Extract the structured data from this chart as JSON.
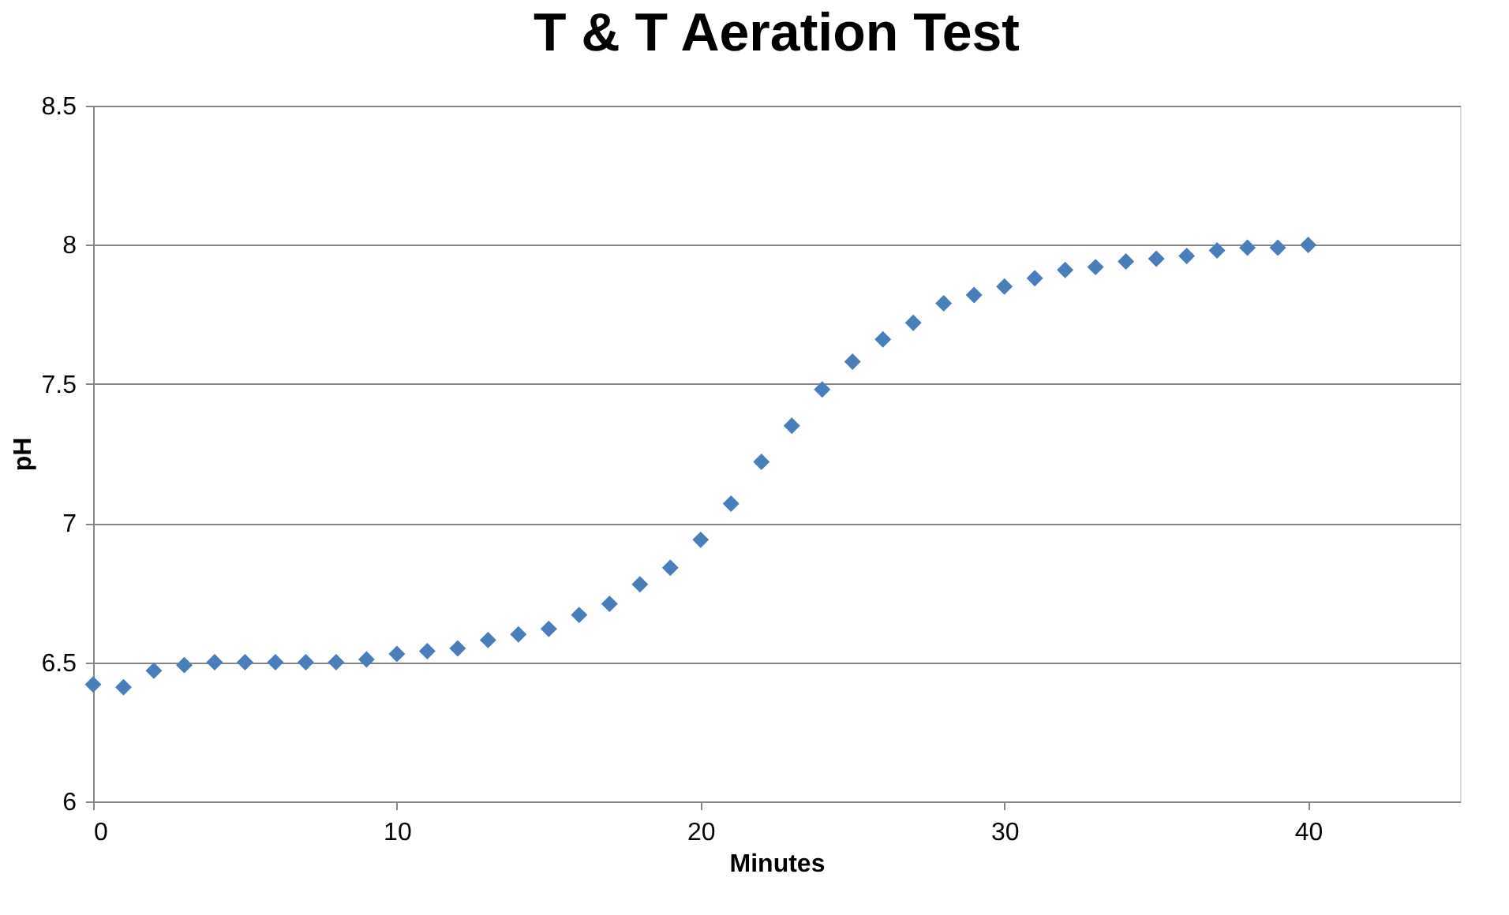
{
  "chart_data": {
    "type": "scatter",
    "title": "T & T Aeration Test",
    "xlabel": "Minutes",
    "ylabel": "pH",
    "x": [
      0,
      1,
      2,
      3,
      4,
      5,
      6,
      7,
      8,
      9,
      10,
      11,
      12,
      13,
      14,
      15,
      16,
      17,
      18,
      19,
      20,
      21,
      22,
      23,
      24,
      25,
      26,
      27,
      28,
      29,
      30,
      31,
      32,
      33,
      34,
      35,
      36,
      37,
      38,
      39,
      40
    ],
    "series": [
      {
        "color": "#4a7ebb",
        "values": [
          6.42,
          6.41,
          6.47,
          6.49,
          6.5,
          6.5,
          6.5,
          6.5,
          6.5,
          6.51,
          6.53,
          6.54,
          6.55,
          6.58,
          6.6,
          6.62,
          6.67,
          6.71,
          6.78,
          6.84,
          6.94,
          7.07,
          7.22,
          7.35,
          7.48,
          7.58,
          7.66,
          7.72,
          7.79,
          7.82,
          7.85,
          7.88,
          7.91,
          7.92,
          7.94,
          7.95,
          7.96,
          7.98,
          7.99,
          7.99,
          8.0
        ]
      }
    ],
    "xlim": [
      0,
      45
    ],
    "xticks": [
      0,
      10,
      20,
      30,
      40
    ],
    "ylim": [
      6,
      8.5
    ],
    "yticks": [
      6,
      6.5,
      7,
      7.5,
      8,
      8.5
    ],
    "grid": "y",
    "marker": "diamond"
  }
}
